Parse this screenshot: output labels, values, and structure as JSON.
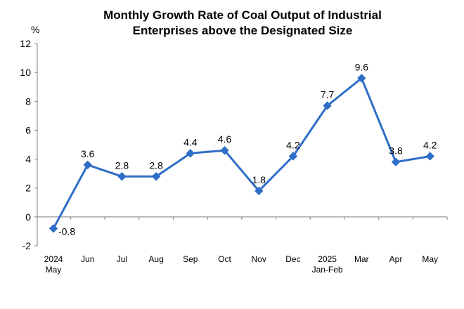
{
  "chart_data": {
    "type": "line",
    "title_lines": [
      "Monthly Growth Rate of Coal Output of Industrial",
      "Enterprises above the Designated Size"
    ],
    "ylabel": "%",
    "ylim": [
      -2,
      12
    ],
    "yticks": [
      -2,
      0,
      2,
      4,
      6,
      8,
      10,
      12
    ],
    "grid": false,
    "categories": [
      {
        "line1": "2024",
        "line2": "May"
      },
      {
        "line1": "Jun",
        "line2": ""
      },
      {
        "line1": "Jul",
        "line2": ""
      },
      {
        "line1": "Aug",
        "line2": ""
      },
      {
        "line1": "Sep",
        "line2": ""
      },
      {
        "line1": "Oct",
        "line2": ""
      },
      {
        "line1": "Nov",
        "line2": ""
      },
      {
        "line1": "Dec",
        "line2": ""
      },
      {
        "line1": "2025",
        "line2": "Jan-Feb"
      },
      {
        "line1": "Mar",
        "line2": ""
      },
      {
        "line1": "Apr",
        "line2": ""
      },
      {
        "line1": "May",
        "line2": ""
      }
    ],
    "series": [
      {
        "name": "Growth rate",
        "color": "#2E6EC6",
        "values": [
          -0.8,
          3.6,
          2.8,
          2.8,
          4.4,
          4.6,
          1.8,
          4.2,
          7.7,
          9.6,
          3.8,
          4.2
        ],
        "labels": [
          "-0.8",
          "3.6",
          "2.8",
          "2.8",
          "4.4",
          "4.6",
          "1.8",
          "4.2",
          "7.7",
          "9.6",
          "3.8",
          "4.2"
        ]
      }
    ]
  }
}
